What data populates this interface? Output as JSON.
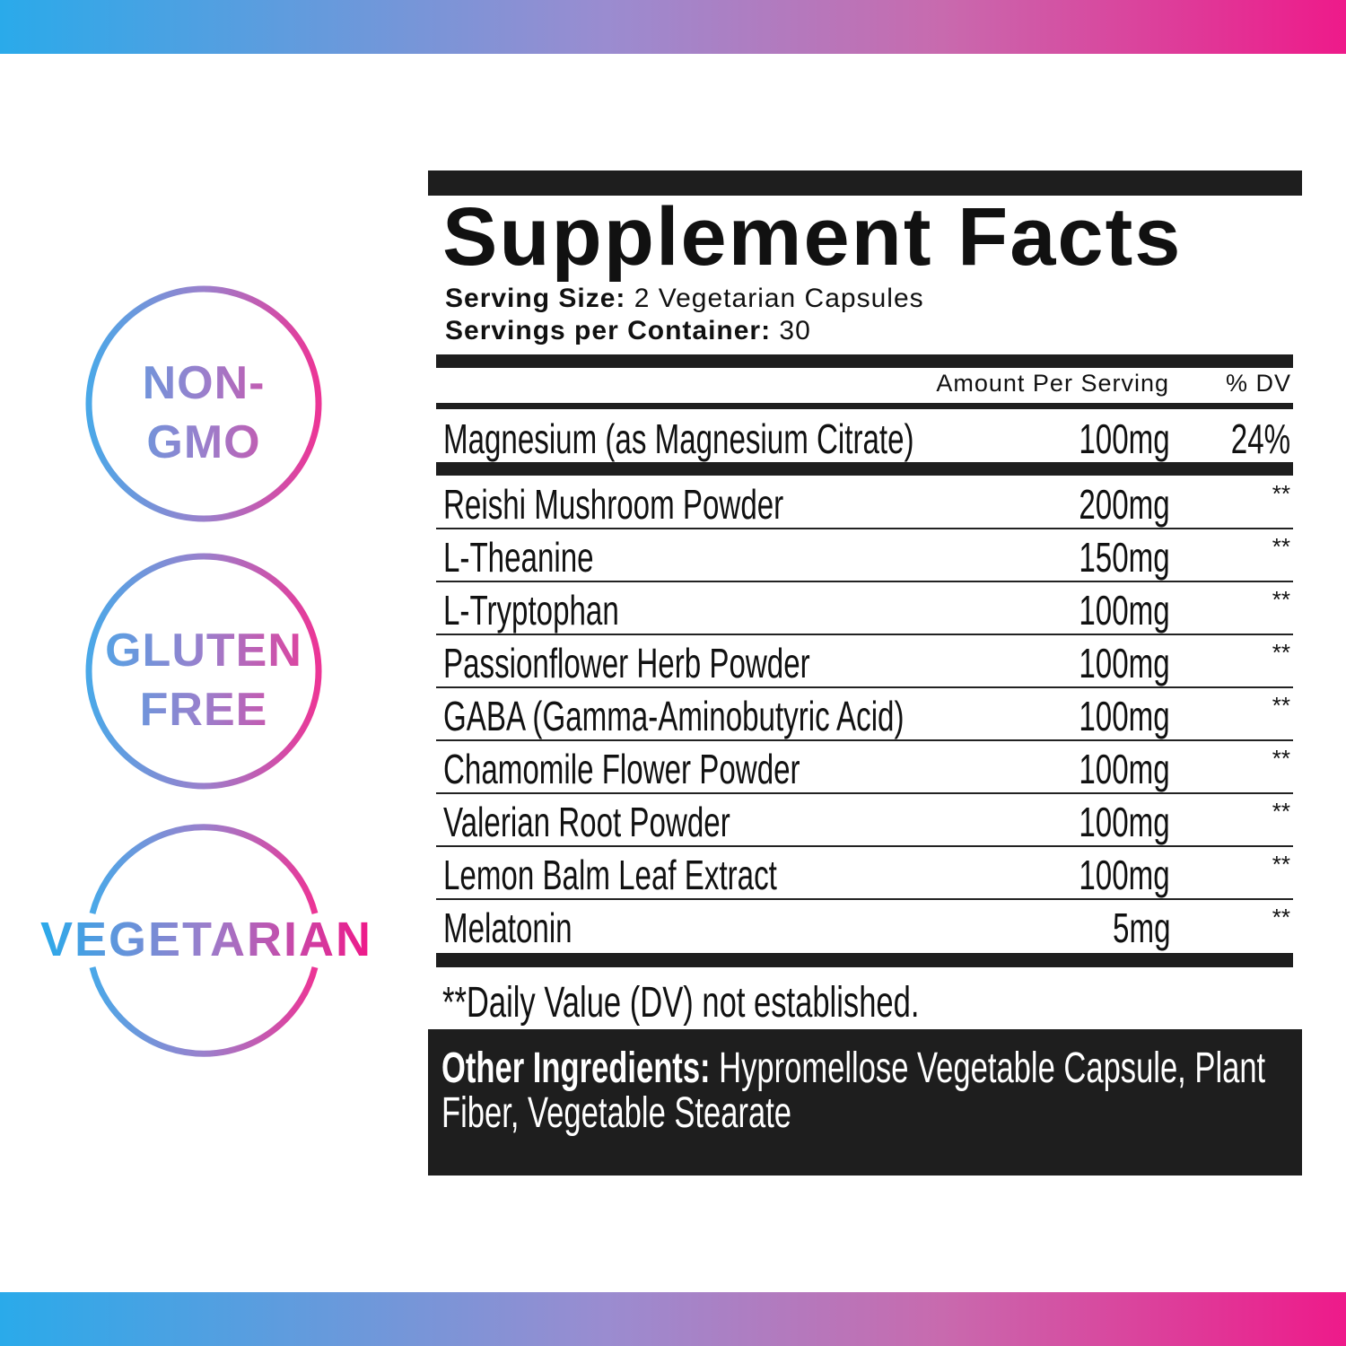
{
  "colors": {
    "gradient_start": "#2aaaea",
    "gradient_end": "#ee1a8a",
    "label_ink": "#1e1e1e"
  },
  "badges": [
    {
      "lines": [
        "NON-",
        "GMO"
      ]
    },
    {
      "lines": [
        "GLUTEN",
        "FREE"
      ]
    },
    {
      "lines": [
        "VEGETARIAN"
      ]
    }
  ],
  "facts": {
    "title": "Supplement Facts",
    "serving_size_label": "Serving Size:",
    "serving_size_value": "2 Vegetarian Capsules",
    "servings_label": "Servings per Container:",
    "servings_value": "30",
    "header_amount": "Amount Per Serving",
    "header_dv": "% DV",
    "primary": {
      "name": "Magnesium (as Magnesium Citrate)",
      "amount": "100mg",
      "dv": "24%"
    },
    "rows": [
      {
        "name": "Reishi Mushroom Powder",
        "amount": "200mg",
        "dv": "**"
      },
      {
        "name": "L-Theanine",
        "amount": "150mg",
        "dv": "**"
      },
      {
        "name": "L-Tryptophan",
        "amount": "100mg",
        "dv": "**"
      },
      {
        "name": "Passionflower Herb Powder",
        "amount": "100mg",
        "dv": "**"
      },
      {
        "name": "GABA (Gamma-Aminobutyric Acid)",
        "amount": "100mg",
        "dv": "**"
      },
      {
        "name": "Chamomile Flower Powder",
        "amount": "100mg",
        "dv": "**"
      },
      {
        "name": "Valerian Root Powder",
        "amount": "100mg",
        "dv": "**"
      },
      {
        "name": "Lemon Balm Leaf Extract",
        "amount": "100mg",
        "dv": "**"
      },
      {
        "name": "Melatonin",
        "amount": "5mg",
        "dv": "**"
      }
    ],
    "footnote": "**Daily Value (DV) not established.",
    "other_label": "Other Ingredients:",
    "other_line1": "Hypromellose Vegetable Capsule, Plant",
    "other_line2": "Fiber, Vegetable Stearate"
  }
}
